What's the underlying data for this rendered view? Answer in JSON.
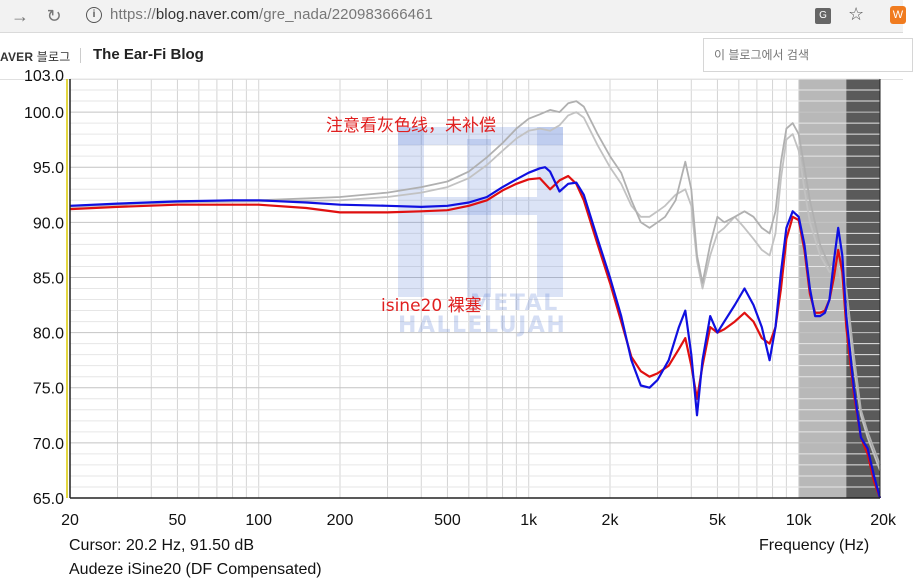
{
  "browser": {
    "url_protocol": "https://",
    "url_host": "blog.naver.com",
    "url_path": "/gre_nada/220983666461",
    "back_icon": "arrow-right-icon",
    "reload_icon": "reload-icon",
    "info_icon": "info-icon",
    "translate_icon": "translate-icon",
    "bookmark_icon": "star-icon",
    "extension_icon": "extension-icon"
  },
  "blog": {
    "brand": "AVER",
    "brand_ko": "블로그",
    "title": "The Ear-Fi Blog",
    "search_placeholder": "이 블로그에서 검색"
  },
  "chart_data": {
    "type": "line",
    "xscale": "log",
    "xlim": [
      20,
      20000
    ],
    "ylim": [
      65,
      103
    ],
    "x_ticks": [
      20,
      50,
      100,
      200,
      500,
      1000,
      2000,
      5000,
      10000,
      20000
    ],
    "x_tick_labels": [
      "20",
      "50",
      "100",
      "200",
      "500",
      "1k",
      "2k",
      "5k",
      "10k",
      "20k"
    ],
    "y_ticks": [
      65,
      70,
      75,
      80,
      85,
      90,
      95,
      100
    ],
    "y_tick_labels": [
      "65.0",
      "70.0",
      "75.0",
      "80.0",
      "85.0",
      "90.0",
      "95.0",
      "100.0"
    ],
    "top_tick_partial": "103.0",
    "xlabel": "Frequency (Hz)",
    "cursor_readout": "Cursor: 20.2 Hz, 91.50 dB",
    "subtitle": "Audeze iSine20 (DF Compensated)",
    "annotations": [
      {
        "text": "注意看灰色线，未补偿",
        "color": "#e02020"
      },
      {
        "text": "isine20  裸塞",
        "color": "#e02020"
      }
    ],
    "watermark_lines": [
      "METAL",
      "HALLELUJAH"
    ],
    "shaded_regions": [
      {
        "from": 10000,
        "to": 15000,
        "color": "#b8b8b8"
      },
      {
        "from": 15000,
        "to": 20000,
        "color": "#5a5a5a"
      }
    ],
    "grid": true,
    "series": [
      {
        "color": "#1010e0",
        "points": [
          [
            20,
            91.5
          ],
          [
            30,
            91.7
          ],
          [
            50,
            91.9
          ],
          [
            80,
            92.0
          ],
          [
            100,
            92.0
          ],
          [
            150,
            91.8
          ],
          [
            200,
            91.6
          ],
          [
            300,
            91.5
          ],
          [
            400,
            91.4
          ],
          [
            500,
            91.5
          ],
          [
            600,
            91.8
          ],
          [
            700,
            92.3
          ],
          [
            800,
            93.2
          ],
          [
            900,
            93.9
          ],
          [
            1000,
            94.5
          ],
          [
            1100,
            94.9
          ],
          [
            1150,
            95.0
          ],
          [
            1200,
            94.6
          ],
          [
            1300,
            92.8
          ],
          [
            1400,
            93.5
          ],
          [
            1500,
            93.6
          ],
          [
            1600,
            92.5
          ],
          [
            1800,
            88.5
          ],
          [
            2000,
            85.0
          ],
          [
            2200,
            81.5
          ],
          [
            2400,
            77.5
          ],
          [
            2600,
            75.2
          ],
          [
            2800,
            75.0
          ],
          [
            3000,
            75.7
          ],
          [
            3300,
            77.5
          ],
          [
            3600,
            80.5
          ],
          [
            3800,
            82.0
          ],
          [
            4000,
            78.0
          ],
          [
            4200,
            72.5
          ],
          [
            4400,
            77.5
          ],
          [
            4700,
            81.5
          ],
          [
            5000,
            80.0
          ],
          [
            5300,
            81.0
          ],
          [
            5800,
            82.5
          ],
          [
            6300,
            84.0
          ],
          [
            6800,
            82.5
          ],
          [
            7300,
            80.5
          ],
          [
            7800,
            77.5
          ],
          [
            8200,
            80.5
          ],
          [
            8600,
            85.5
          ],
          [
            9000,
            89.5
          ],
          [
            9500,
            91.0
          ],
          [
            10000,
            90.5
          ],
          [
            10500,
            88.0
          ],
          [
            11000,
            84.0
          ],
          [
            11500,
            81.5
          ],
          [
            12000,
            81.5
          ],
          [
            12500,
            81.8
          ],
          [
            13000,
            83.0
          ],
          [
            13500,
            86.5
          ],
          [
            14000,
            89.5
          ],
          [
            14500,
            87.0
          ],
          [
            15000,
            81.5
          ],
          [
            16000,
            75.0
          ],
          [
            17000,
            70.5
          ],
          [
            18000,
            69.5
          ],
          [
            19000,
            67.0
          ],
          [
            20000,
            65.0
          ]
        ]
      },
      {
        "color": "#e01010",
        "points": [
          [
            20,
            91.2
          ],
          [
            30,
            91.4
          ],
          [
            50,
            91.6
          ],
          [
            80,
            91.6
          ],
          [
            100,
            91.6
          ],
          [
            150,
            91.3
          ],
          [
            200,
            90.9
          ],
          [
            300,
            90.9
          ],
          [
            400,
            91.0
          ],
          [
            500,
            91.1
          ],
          [
            600,
            91.5
          ],
          [
            700,
            92.0
          ],
          [
            800,
            92.9
          ],
          [
            900,
            93.5
          ],
          [
            1000,
            93.9
          ],
          [
            1100,
            94.0
          ],
          [
            1200,
            93.0
          ],
          [
            1300,
            93.8
          ],
          [
            1400,
            94.2
          ],
          [
            1500,
            93.5
          ],
          [
            1600,
            92.0
          ],
          [
            1800,
            88.0
          ],
          [
            2000,
            84.5
          ],
          [
            2200,
            81.0
          ],
          [
            2400,
            77.8
          ],
          [
            2600,
            76.5
          ],
          [
            2800,
            76.0
          ],
          [
            3000,
            76.3
          ],
          [
            3300,
            77.0
          ],
          [
            3600,
            78.5
          ],
          [
            3800,
            79.5
          ],
          [
            4000,
            77.0
          ],
          [
            4200,
            74.0
          ],
          [
            4400,
            77.0
          ],
          [
            4700,
            80.5
          ],
          [
            5000,
            80.0
          ],
          [
            5300,
            80.3
          ],
          [
            5800,
            81.0
          ],
          [
            6300,
            81.8
          ],
          [
            6800,
            81.0
          ],
          [
            7300,
            79.5
          ],
          [
            7800,
            79.0
          ],
          [
            8200,
            80.5
          ],
          [
            8600,
            84.0
          ],
          [
            9000,
            88.5
          ],
          [
            9500,
            90.5
          ],
          [
            10000,
            90.2
          ],
          [
            10500,
            87.5
          ],
          [
            11000,
            83.5
          ],
          [
            11500,
            81.8
          ],
          [
            12000,
            81.8
          ],
          [
            12500,
            82.0
          ],
          [
            13000,
            83.0
          ],
          [
            13500,
            85.0
          ],
          [
            14000,
            87.5
          ],
          [
            14500,
            85.5
          ],
          [
            15000,
            80.5
          ],
          [
            16000,
            74.5
          ],
          [
            17000,
            70.5
          ],
          [
            18000,
            69.0
          ],
          [
            19000,
            66.5
          ],
          [
            20000,
            65.0
          ]
        ]
      },
      {
        "color": "#b0b0b0",
        "points": [
          [
            20,
            91.5
          ],
          [
            50,
            91.9
          ],
          [
            100,
            92.0
          ],
          [
            200,
            92.3
          ],
          [
            300,
            92.7
          ],
          [
            400,
            93.2
          ],
          [
            500,
            93.7
          ],
          [
            600,
            94.6
          ],
          [
            700,
            95.9
          ],
          [
            800,
            97.2
          ],
          [
            900,
            98.5
          ],
          [
            1000,
            99.4
          ],
          [
            1100,
            99.8
          ],
          [
            1200,
            100.2
          ],
          [
            1300,
            100.0
          ],
          [
            1400,
            100.8
          ],
          [
            1500,
            101.0
          ],
          [
            1600,
            100.5
          ],
          [
            1800,
            98.0
          ],
          [
            2000,
            96.0
          ],
          [
            2200,
            94.5
          ],
          [
            2400,
            92.0
          ],
          [
            2600,
            90.0
          ],
          [
            2800,
            89.5
          ],
          [
            3000,
            90.0
          ],
          [
            3200,
            90.5
          ],
          [
            3500,
            92.0
          ],
          [
            3800,
            95.5
          ],
          [
            4000,
            93.0
          ],
          [
            4200,
            87.0
          ],
          [
            4400,
            84.5
          ],
          [
            4700,
            88.0
          ],
          [
            5000,
            90.5
          ],
          [
            5300,
            90.0
          ],
          [
            5800,
            90.5
          ],
          [
            6300,
            91.0
          ],
          [
            6800,
            90.5
          ],
          [
            7300,
            89.5
          ],
          [
            7800,
            89.0
          ],
          [
            8200,
            91.0
          ],
          [
            8600,
            95.5
          ],
          [
            9000,
            98.5
          ],
          [
            9500,
            99.0
          ],
          [
            10000,
            98.0
          ],
          [
            10500,
            95.0
          ],
          [
            11000,
            92.0
          ],
          [
            12000,
            88.0
          ],
          [
            13000,
            86.0
          ],
          [
            14000,
            87.0
          ],
          [
            15000,
            84.0
          ],
          [
            16000,
            78.0
          ],
          [
            17000,
            73.0
          ],
          [
            18000,
            71.0
          ],
          [
            20000,
            68.0
          ]
        ]
      },
      {
        "color": "#c2c2c2",
        "points": [
          [
            20,
            91.4
          ],
          [
            50,
            91.8
          ],
          [
            100,
            91.9
          ],
          [
            200,
            92.0
          ],
          [
            300,
            92.3
          ],
          [
            400,
            92.7
          ],
          [
            500,
            93.2
          ],
          [
            600,
            94.0
          ],
          [
            700,
            95.2
          ],
          [
            800,
            96.5
          ],
          [
            900,
            97.6
          ],
          [
            1000,
            98.3
          ],
          [
            1100,
            98.5
          ],
          [
            1200,
            98.3
          ],
          [
            1300,
            98.8
          ],
          [
            1400,
            99.7
          ],
          [
            1500,
            100.0
          ],
          [
            1600,
            99.5
          ],
          [
            1800,
            97.0
          ],
          [
            2000,
            95.0
          ],
          [
            2200,
            93.5
          ],
          [
            2400,
            91.5
          ],
          [
            2600,
            90.5
          ],
          [
            2800,
            90.5
          ],
          [
            3000,
            91.0
          ],
          [
            3200,
            91.5
          ],
          [
            3500,
            92.5
          ],
          [
            3800,
            93.0
          ],
          [
            4000,
            91.5
          ],
          [
            4200,
            86.5
          ],
          [
            4400,
            84.0
          ],
          [
            4700,
            87.0
          ],
          [
            5000,
            89.0
          ],
          [
            5300,
            89.5
          ],
          [
            5800,
            90.5
          ],
          [
            6300,
            89.5
          ],
          [
            6800,
            88.5
          ],
          [
            7300,
            87.5
          ],
          [
            7800,
            87.0
          ],
          [
            8200,
            89.0
          ],
          [
            8600,
            94.0
          ],
          [
            9000,
            97.5
          ],
          [
            9500,
            98.0
          ],
          [
            10000,
            96.5
          ],
          [
            10500,
            93.0
          ],
          [
            11000,
            90.0
          ],
          [
            12000,
            87.0
          ],
          [
            13000,
            85.5
          ],
          [
            14000,
            86.0
          ],
          [
            15000,
            82.5
          ],
          [
            16000,
            77.0
          ],
          [
            17000,
            72.5
          ],
          [
            18000,
            70.5
          ],
          [
            20000,
            67.5
          ]
        ]
      }
    ]
  }
}
